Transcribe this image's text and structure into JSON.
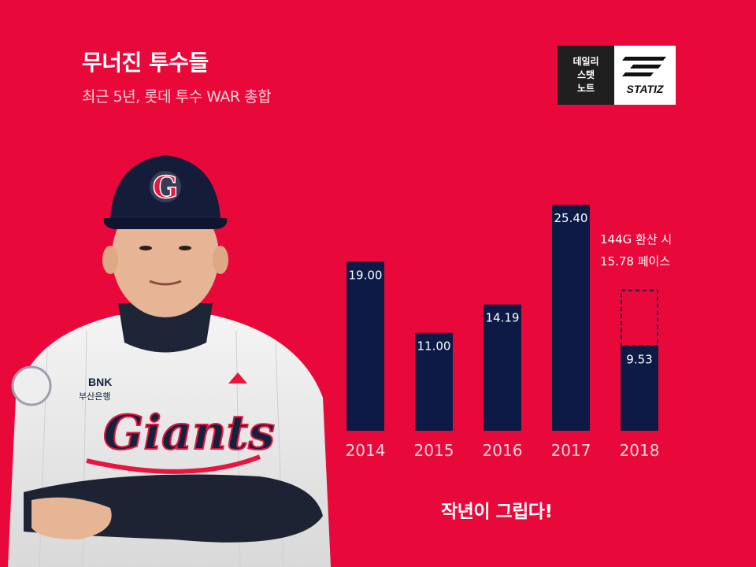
{
  "header": {
    "title": "무너진 투수들",
    "subtitle": "최근 5년, 롯데 투수 WAR 총합"
  },
  "badge": {
    "line1": "데일리",
    "line2": "스탯",
    "line3": "노트",
    "brand": "STATIZ"
  },
  "player": {
    "cap_letter": "G",
    "jersey_text": "Giants",
    "sponsor_line1": "BNK",
    "sponsor_line2": "부산은행"
  },
  "note": {
    "line1": "144G 환산 시",
    "line2": "15.78 페이스"
  },
  "tagline": "작년이 그립다!",
  "colors": {
    "background": "#e8093a",
    "bar": "#0d1a45",
    "label": "#ffffff",
    "year_label": "#ffd3dc"
  },
  "chart_data": {
    "type": "bar",
    "categories": [
      "2014",
      "2015",
      "2016",
      "2017",
      "2018"
    ],
    "values": [
      19.0,
      11.0,
      14.19,
      25.4,
      9.53
    ],
    "value_labels": [
      "19.00",
      "11.00",
      "14.19",
      "25.40",
      "9.53"
    ],
    "projection": {
      "category": "2018",
      "value": 15.78
    },
    "ylim": [
      0,
      28
    ],
    "title": "",
    "xlabel": "",
    "ylabel": ""
  }
}
